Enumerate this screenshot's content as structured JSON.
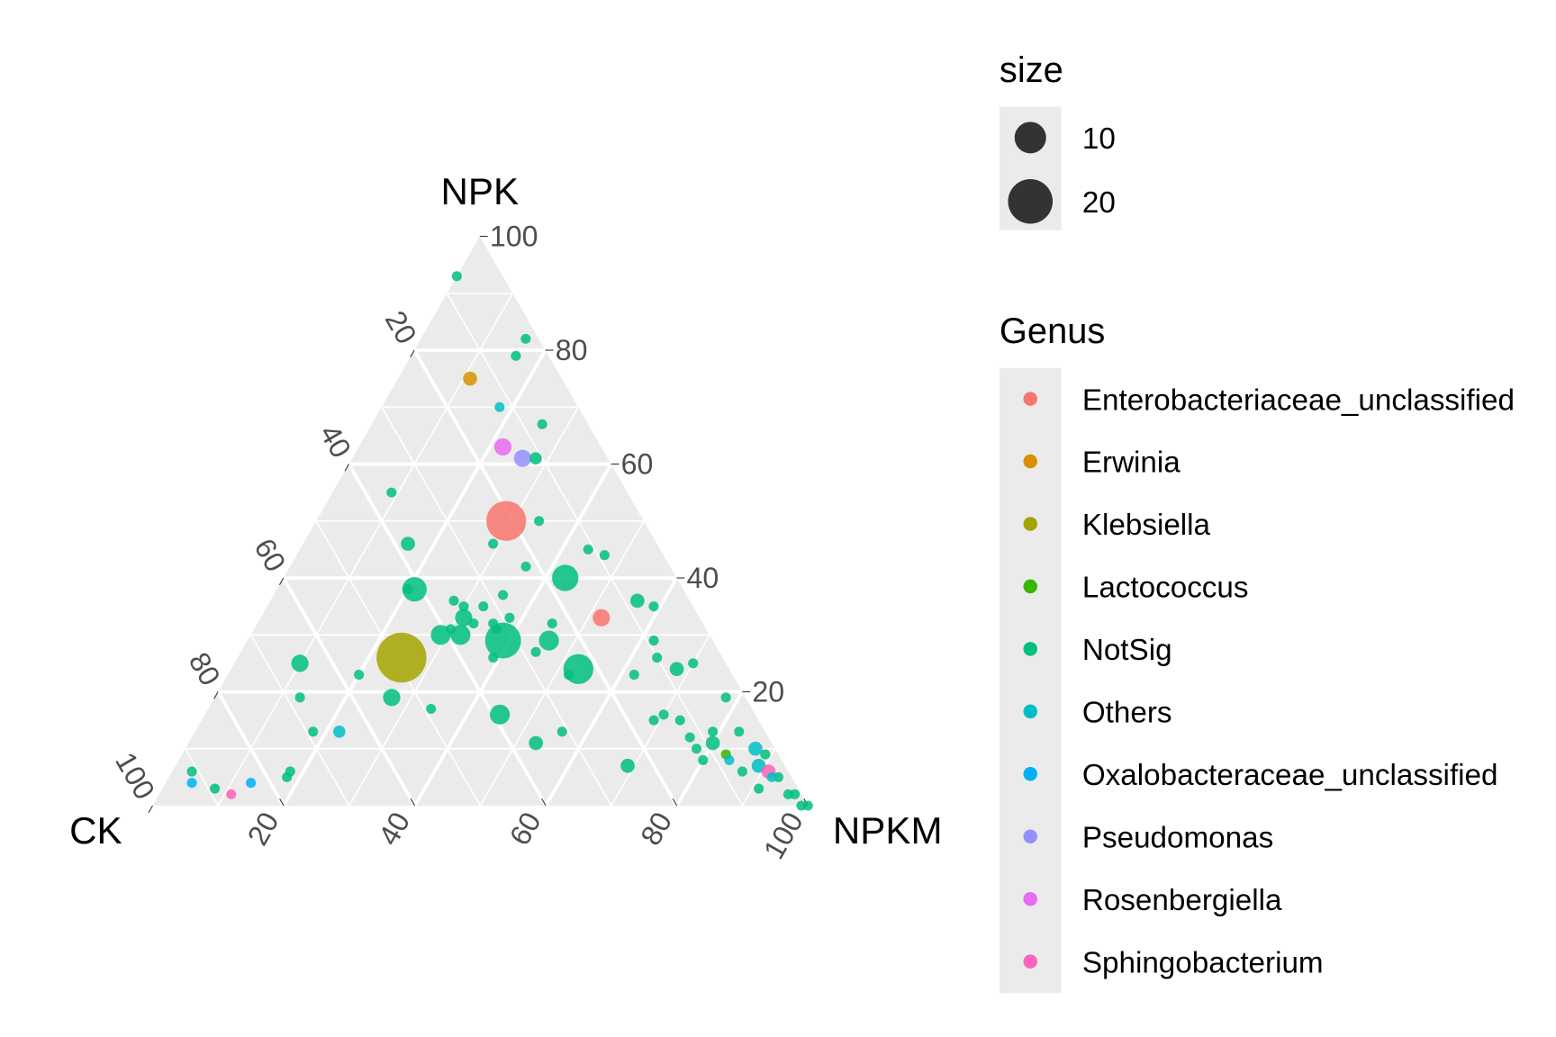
{
  "chart_data": {
    "type": "scatter",
    "subtype": "ternary",
    "axes": {
      "top": {
        "label": "NPK"
      },
      "left": {
        "label": "CK"
      },
      "right": {
        "label": "NPKM"
      }
    },
    "ticks": [
      "20",
      "40",
      "60",
      "80",
      "100"
    ],
    "range": [
      0,
      100
    ],
    "grid": true,
    "legend_position": "right",
    "legend": {
      "size_title": "size",
      "size_entries": [
        {
          "label": "10",
          "value": 10
        },
        {
          "label": "20",
          "value": 20
        }
      ],
      "genus_title": "Genus",
      "genus_entries": [
        {
          "label": "Enterobacteriaceae_unclassified",
          "color": "#F8766D"
        },
        {
          "label": "Erwinia",
          "color": "#D89000"
        },
        {
          "label": "Klebsiella",
          "color": "#A3A500"
        },
        {
          "label": "Lactococcus",
          "color": "#39B600"
        },
        {
          "label": "NotSig",
          "color": "#00BF7D"
        },
        {
          "label": "Others",
          "color": "#00BFC4"
        },
        {
          "label": "Oxalobacteraceae_unclassified",
          "color": "#00B0F6"
        },
        {
          "label": "Pseudomonas",
          "color": "#9590FF"
        },
        {
          "label": "Rosenbergiella",
          "color": "#E76BF3"
        },
        {
          "label": "Sphingobacterium",
          "color": "#FF62BC"
        }
      ]
    },
    "point_fields": [
      "CK",
      "NPK",
      "NPKM",
      "Genus",
      "size"
    ],
    "points": [
      [
        7,
        93,
        0,
        "NotSig",
        1
      ],
      [
        2,
        82,
        16,
        "NotSig",
        1
      ],
      [
        5,
        79,
        16,
        "NotSig",
        1
      ],
      [
        14,
        75,
        11,
        "Erwinia",
        2
      ],
      [
        12,
        70,
        18,
        "Others",
        1
      ],
      [
        7,
        67,
        26,
        "NotSig",
        1
      ],
      [
        15,
        63,
        22,
        "Rosenbergiella",
        3
      ],
      [
        13,
        61,
        26,
        "Pseudomonas",
        3
      ],
      [
        11,
        61,
        28,
        "NotSig",
        1.5
      ],
      [
        36,
        55,
        9,
        "NotSig",
        1
      ],
      [
        21,
        50,
        29,
        "Enterobacteriaceae_unclassified",
        16
      ],
      [
        16,
        50,
        34,
        "NotSig",
        1
      ],
      [
        25,
        46,
        29,
        "NotSig",
        1
      ],
      [
        38,
        46,
        16,
        "NotSig",
        2
      ],
      [
        11,
        45,
        44,
        "NotSig",
        1
      ],
      [
        9,
        44,
        47,
        "NotSig",
        1
      ],
      [
        22,
        42,
        36,
        "NotSig",
        1
      ],
      [
        17,
        40,
        43,
        "NotSig",
        7
      ],
      [
        41,
        38,
        21,
        "NotSig",
        6
      ],
      [
        42,
        38,
        20,
        "NotSig",
        1
      ],
      [
        28,
        37,
        35,
        "NotSig",
        1
      ],
      [
        8,
        36,
        56,
        "NotSig",
        2
      ],
      [
        6,
        35,
        59,
        "NotSig",
        1
      ],
      [
        36,
        36,
        28,
        "NotSig",
        1
      ],
      [
        35,
        35,
        30,
        "NotSig",
        1
      ],
      [
        32,
        35,
        33,
        "NotSig",
        1
      ],
      [
        36,
        33,
        31,
        "NotSig",
        3
      ],
      [
        35,
        32,
        33,
        "NotSig",
        1
      ],
      [
        29,
        33,
        38,
        "NotSig",
        1
      ],
      [
        15,
        33,
        52,
        "Enterobacteriaceae_unclassified",
        3
      ],
      [
        39,
        31,
        30,
        "NotSig",
        1
      ],
      [
        41,
        30,
        29,
        "NotSig",
        4
      ],
      [
        38,
        30,
        32,
        "NotSig",
        4
      ],
      [
        32,
        32,
        36,
        "NotSig",
        1
      ],
      [
        32,
        31,
        37,
        "NotSig",
        1
      ],
      [
        23,
        32,
        45,
        "NotSig",
        1
      ],
      [
        32,
        29,
        39,
        "NotSig",
        13
      ],
      [
        25,
        29,
        46,
        "NotSig",
        4
      ],
      [
        28,
        27,
        45,
        "NotSig",
        1
      ],
      [
        9,
        29,
        62,
        "NotSig",
        1
      ],
      [
        10,
        26,
        64,
        "NotSig",
        1
      ],
      [
        35,
        26,
        39,
        "NotSig",
        1
      ],
      [
        49,
        26,
        25,
        "Klebsiella",
        25
      ],
      [
        65,
        25,
        10,
        "NotSig",
        3
      ],
      [
        23,
        24,
        53,
        "NotSig",
        9
      ],
      [
        25,
        23,
        52,
        "NotSig",
        1
      ],
      [
        5,
        25,
        70,
        "NotSig",
        1
      ],
      [
        8,
        24,
        68,
        "NotSig",
        2
      ],
      [
        15,
        23,
        62,
        "NotSig",
        1
      ],
      [
        57,
        23,
        20,
        "NotSig",
        1
      ],
      [
        3,
        19,
        78,
        "NotSig",
        1
      ],
      [
        68,
        19,
        13,
        "NotSig",
        1
      ],
      [
        54,
        19,
        27,
        "NotSig",
        3
      ],
      [
        49,
        17,
        34,
        "NotSig",
        1
      ],
      [
        39,
        16,
        45,
        "NotSig",
        4
      ],
      [
        14,
        16,
        70,
        "NotSig",
        1
      ],
      [
        16,
        15,
        69,
        "NotSig",
        1
      ],
      [
        12,
        15,
        73,
        "NotSig",
        1
      ],
      [
        69,
        13,
        18,
        "NotSig",
        1
      ],
      [
        65,
        13,
        22,
        "Others",
        1.5
      ],
      [
        31,
        13,
        56,
        "NotSig",
        1
      ],
      [
        36,
        11,
        53,
        "NotSig",
        2
      ],
      [
        12,
        12,
        76,
        "NotSig",
        1
      ],
      [
        8,
        13,
        79,
        "NotSig",
        1
      ],
      [
        4,
        13,
        83,
        "NotSig",
        1
      ],
      [
        9,
        11,
        80,
        "NotSig",
        2
      ],
      [
        12,
        10,
        78,
        "NotSig",
        1
      ],
      [
        8,
        9,
        83,
        "Lactococcus",
        1
      ],
      [
        3,
        10,
        87,
        "Others",
        2
      ],
      [
        2,
        9,
        89,
        "NotSig",
        1
      ],
      [
        12,
        8,
        80,
        "NotSig",
        1
      ],
      [
        8,
        8,
        84,
        "Others",
        1
      ],
      [
        4,
        7,
        89,
        "Others",
        2
      ],
      [
        24,
        7,
        69,
        "NotSig",
        2
      ],
      [
        7,
        6,
        87,
        "NotSig",
        1
      ],
      [
        3,
        6,
        91,
        "Sphingobacterium",
        2
      ],
      [
        2,
        5,
        93,
        "NotSig",
        1
      ],
      [
        3,
        5,
        92,
        "Others",
        1
      ],
      [
        6,
        3,
        91,
        "NotSig",
        1
      ],
      [
        2,
        2,
        96,
        "NotSig",
        1
      ],
      [
        1,
        2,
        97,
        "NotSig",
        1
      ],
      [
        1,
        0,
        99,
        "NotSig",
        1
      ],
      [
        0,
        0,
        100,
        "NotSig",
        1
      ],
      [
        91,
        6,
        3,
        "NotSig",
        1
      ],
      [
        92,
        4,
        4,
        "Oxalobacteraceae_unclassified",
        1
      ],
      [
        89,
        3,
        8,
        "NotSig",
        1
      ],
      [
        87,
        2,
        11,
        "Sphingobacterium",
        1
      ],
      [
        83,
        4,
        13,
        "Oxalobacteraceae_unclassified",
        1
      ],
      [
        77,
        5,
        18,
        "NotSig",
        1
      ],
      [
        76,
        6,
        18,
        "NotSig",
        1
      ]
    ]
  }
}
